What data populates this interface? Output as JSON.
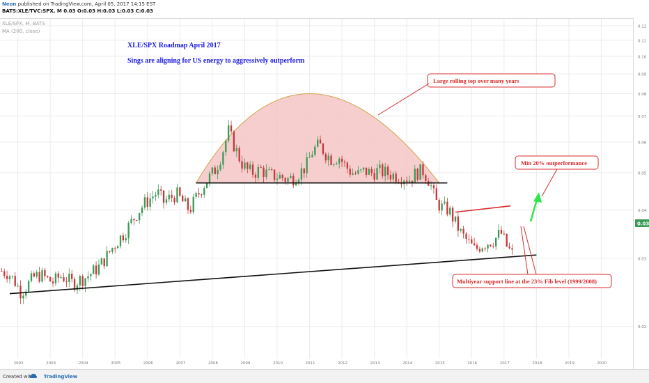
{
  "header": {
    "author": "Neon",
    "published_text": "published on TradingView.com, April 05, 2017 14:15 EST",
    "symbol_line": "BATS:XLE/TVC:SPX, M 0.03 O:0.03 H:0.03 L:0.03 C:0.03"
  },
  "legend": {
    "line1": "XLE/SPX, M, BATS",
    "line2": "MA (200, close)"
  },
  "footer": {
    "created_with": "Created with",
    "brand": "TradingView"
  },
  "price_badge": "0.03",
  "colors": {
    "bull": "#3a9b57",
    "bear": "#c8383a",
    "dome_fill": "#f5c6c6",
    "dome_edge": "#d4a34a",
    "annotation_red": "#d72c2c",
    "arrow_green": "#2ee64a",
    "title_blue": "#1a1adf",
    "badge": "#3a9b57"
  },
  "annotations": {
    "title": "XLE/SPX  Roadmap April 2017",
    "subtitle": "Sings are aligning for US energy to aggressively outperform",
    "callout_top": "Large rolling top over many years",
    "callout_min": "Min 20% outperformance",
    "callout_support": "Multiyear support line at the 23% Fib level (1999/2008)"
  },
  "chart_data": {
    "type": "candlestick",
    "symbol": "XLE/SPX",
    "interval": "M",
    "scale": "log",
    "x_axis": {
      "labels": [
        "2002",
        "2003",
        "2004",
        "2005",
        "2006",
        "2007",
        "2008",
        "2009",
        "2010",
        "2011",
        "2012",
        "2013",
        "2014",
        "2015",
        "2016",
        "2017",
        "2018",
        "2019",
        "2020"
      ],
      "range": [
        2001.45,
        2021.0
      ]
    },
    "y_axis": {
      "labels": [
        "0.02",
        "0.03",
        "0.04",
        "0.05",
        "0.06",
        "0.07",
        "0.08",
        "0.09",
        "0.10",
        "0.11",
        "0.12"
      ],
      "range": [
        0.0165,
        0.125
      ]
    },
    "grid": true,
    "close_series": [
      [
        2001.5,
        0.0278
      ],
      [
        2001.7,
        0.0275
      ],
      [
        2001.9,
        0.0262
      ],
      [
        2002.1,
        0.0245
      ],
      [
        2002.3,
        0.0256
      ],
      [
        2002.5,
        0.0268
      ],
      [
        2002.7,
        0.0272
      ],
      [
        2002.9,
        0.0265
      ],
      [
        2003.1,
        0.026
      ],
      [
        2003.3,
        0.027
      ],
      [
        2003.5,
        0.0266
      ],
      [
        2003.7,
        0.0258
      ],
      [
        2003.9,
        0.0264
      ],
      [
        2004.1,
        0.0268
      ],
      [
        2004.3,
        0.0276
      ],
      [
        2004.5,
        0.0285
      ],
      [
        2004.7,
        0.03
      ],
      [
        2004.9,
        0.0318
      ],
      [
        2005.1,
        0.0335
      ],
      [
        2005.3,
        0.035
      ],
      [
        2005.5,
        0.0372
      ],
      [
        2005.7,
        0.0395
      ],
      [
        2005.9,
        0.0415
      ],
      [
        2006.1,
        0.043
      ],
      [
        2006.3,
        0.0445
      ],
      [
        2006.5,
        0.042
      ],
      [
        2006.7,
        0.043
      ],
      [
        2006.9,
        0.044
      ],
      [
        2007.1,
        0.0418
      ],
      [
        2007.3,
        0.04
      ],
      [
        2007.5,
        0.043
      ],
      [
        2007.7,
        0.046
      ],
      [
        2007.9,
        0.0485
      ],
      [
        2008.1,
        0.051
      ],
      [
        2008.3,
        0.056
      ],
      [
        2008.5,
        0.064
      ],
      [
        2008.7,
        0.058
      ],
      [
        2008.9,
        0.053
      ],
      [
        2009.1,
        0.0505
      ],
      [
        2009.3,
        0.05
      ],
      [
        2009.5,
        0.051
      ],
      [
        2009.7,
        0.0495
      ],
      [
        2009.9,
        0.049
      ],
      [
        2010.1,
        0.0488
      ],
      [
        2010.3,
        0.048
      ],
      [
        2010.5,
        0.0485
      ],
      [
        2010.7,
        0.05
      ],
      [
        2010.9,
        0.052
      ],
      [
        2011.1,
        0.057
      ],
      [
        2011.3,
        0.059
      ],
      [
        2011.5,
        0.056
      ],
      [
        2011.7,
        0.054
      ],
      [
        2011.9,
        0.055
      ],
      [
        2012.1,
        0.052
      ],
      [
        2012.3,
        0.05
      ],
      [
        2012.5,
        0.0495
      ],
      [
        2012.7,
        0.0505
      ],
      [
        2012.9,
        0.0498
      ],
      [
        2013.1,
        0.0505
      ],
      [
        2013.3,
        0.05
      ],
      [
        2013.5,
        0.0495
      ],
      [
        2013.7,
        0.049
      ],
      [
        2013.9,
        0.0488
      ],
      [
        2014.1,
        0.048
      ],
      [
        2014.3,
        0.05
      ],
      [
        2014.5,
        0.0505
      ],
      [
        2014.7,
        0.0475
      ],
      [
        2014.9,
        0.042
      ],
      [
        2015.1,
        0.0405
      ],
      [
        2015.3,
        0.04
      ],
      [
        2015.5,
        0.037
      ],
      [
        2015.7,
        0.0345
      ],
      [
        2015.9,
        0.033
      ],
      [
        2016.1,
        0.0315
      ],
      [
        2016.3,
        0.0325
      ],
      [
        2016.5,
        0.033
      ],
      [
        2016.7,
        0.0335
      ],
      [
        2016.9,
        0.035
      ],
      [
        2017.1,
        0.032
      ],
      [
        2017.25,
        0.0308
      ]
    ],
    "lines": [
      {
        "name": "rolling-top-neckline",
        "from": [
          2007.5,
          0.047
        ],
        "to": [
          2015.25,
          0.047
        ],
        "color": "#111111"
      },
      {
        "name": "multiyear-support",
        "from": [
          2001.75,
          0.0243
        ],
        "to": [
          2018.0,
          0.0306
        ],
        "color": "#111111"
      },
      {
        "name": "target-line",
        "from": [
          2015.5,
          0.0395
        ],
        "to": [
          2017.2,
          0.041
        ],
        "color": "#d72c2c"
      }
    ],
    "dome": {
      "from": [
        2007.5,
        0.047
      ],
      "peak": [
        2011.0,
        0.08
      ],
      "to": [
        2015.0,
        0.047
      ]
    }
  }
}
